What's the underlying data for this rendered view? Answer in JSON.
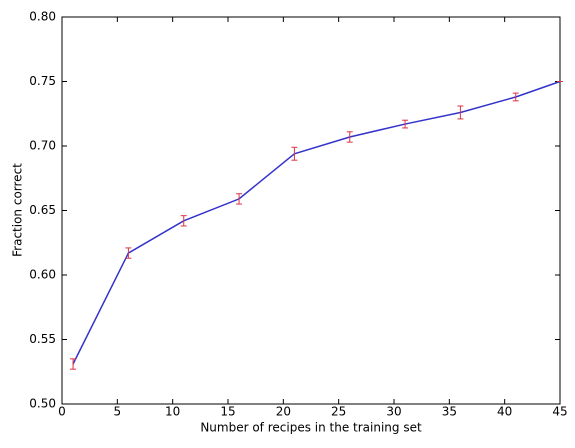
{
  "chart_data": {
    "type": "line",
    "x_label": "Number of recipes in the training set",
    "y_label": "Fraction correct",
    "x": [
      1,
      6,
      11,
      16,
      21,
      26,
      31,
      36,
      41,
      45
    ],
    "values": [
      0.531,
      0.617,
      0.642,
      0.659,
      0.694,
      0.707,
      0.717,
      0.726,
      0.738,
      0.75
    ],
    "errors": [
      0.004,
      0.004,
      0.004,
      0.004,
      0.005,
      0.004,
      0.003,
      0.005,
      0.003,
      0
    ],
    "color": "#3333cc",
    "error_color": "#dd3344",
    "xlim": [
      0,
      45
    ],
    "xticks": [
      0,
      5,
      10,
      15,
      20,
      25,
      30,
      35,
      40,
      45
    ],
    "ylim": [
      0.5,
      0.8
    ],
    "yticks": [
      {
        "value": 0.5,
        "label": "0.50"
      },
      {
        "value": 0.55,
        "label": "0.55"
      },
      {
        "value": 0.6,
        "label": "0.60"
      },
      {
        "value": 0.65,
        "label": "0.65"
      },
      {
        "value": 0.7,
        "label": "0.70"
      },
      {
        "value": 0.75,
        "label": "0.75"
      },
      {
        "value": 0.8,
        "label": "0.80"
      }
    ]
  }
}
